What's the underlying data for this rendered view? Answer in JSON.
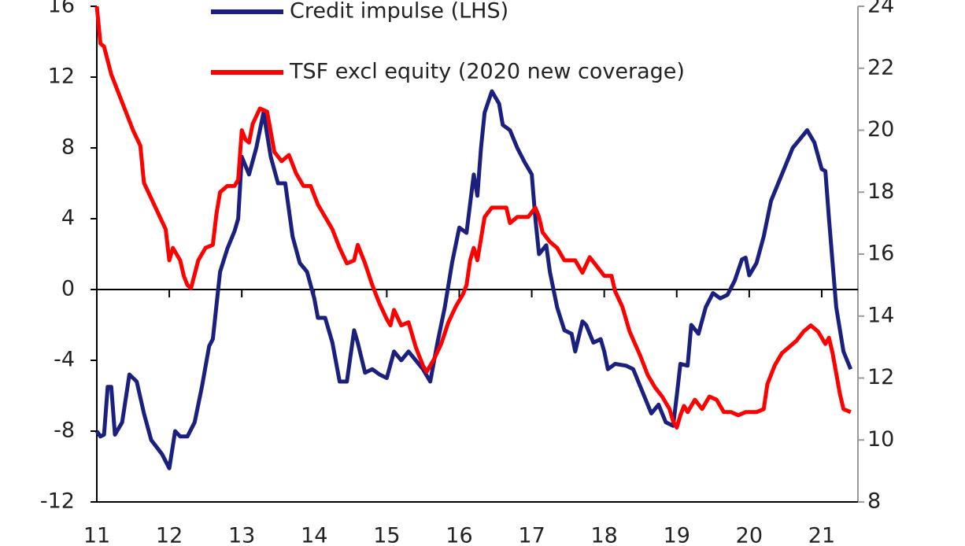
{
  "chart_data": {
    "type": "line",
    "xlim": [
      11,
      21.5
    ],
    "xticks": [
      11,
      12,
      13,
      14,
      15,
      16,
      17,
      18,
      19,
      20,
      21
    ],
    "ylim": [
      -12,
      16
    ],
    "yticks": [
      -12,
      -8,
      -4,
      0,
      4,
      8,
      12,
      16
    ],
    "y2lim": [
      8,
      24
    ],
    "y2ticks": [
      8,
      10,
      12,
      14,
      16,
      18,
      20,
      22,
      24
    ],
    "series": [
      {
        "name": "Credit impulse (LHS)",
        "color": "#1b1f7e",
        "x": [
          11.0,
          11.05,
          11.1,
          11.15,
          11.2,
          11.25,
          11.35,
          11.45,
          11.55,
          11.65,
          11.75,
          11.9,
          12.0,
          12.08,
          12.15,
          12.25,
          12.35,
          12.45,
          12.55,
          12.6,
          12.7,
          12.8,
          12.9,
          12.95,
          13.0,
          13.1,
          13.2,
          13.3,
          13.4,
          13.5,
          13.6,
          13.7,
          13.8,
          13.9,
          14.0,
          14.05,
          14.15,
          14.25,
          14.35,
          14.45,
          14.55,
          14.6,
          14.7,
          14.8,
          14.9,
          15.0,
          15.1,
          15.2,
          15.3,
          15.4,
          15.5,
          15.6,
          15.7,
          15.8,
          15.9,
          16.0,
          16.1,
          16.2,
          16.25,
          16.3,
          16.35,
          16.45,
          16.55,
          16.6,
          16.7,
          16.8,
          16.9,
          17.0,
          17.05,
          17.1,
          17.2,
          17.25,
          17.35,
          17.45,
          17.55,
          17.6,
          17.7,
          17.75,
          17.85,
          17.95,
          18.0,
          18.05,
          18.15,
          18.3,
          18.4,
          18.5,
          18.6,
          18.65,
          18.75,
          18.85,
          18.95,
          19.0,
          19.05,
          19.15,
          19.2,
          19.3,
          19.4,
          19.5,
          19.6,
          19.7,
          19.8,
          19.9,
          19.95,
          20.0,
          20.1,
          20.2,
          20.3,
          20.4,
          20.5,
          20.6,
          20.7,
          20.8,
          20.9,
          21.0,
          21.05,
          21.1,
          21.15,
          21.2,
          21.3,
          21.4
        ],
        "values": [
          -8,
          -8.3,
          -8.2,
          -5.5,
          -5.5,
          -8.2,
          -7.5,
          -4.8,
          -5.2,
          -7,
          -8.5,
          -9.3,
          -10.1,
          -8,
          -8.3,
          -8.3,
          -7.5,
          -5.5,
          -3.2,
          -2.8,
          1,
          2.3,
          3.3,
          4,
          7.5,
          6.5,
          8,
          10,
          7.5,
          6,
          6,
          3,
          1.5,
          1,
          -0.5,
          -1.6,
          -1.6,
          -3,
          -5.2,
          -5.2,
          -2.3,
          -3,
          -4.7,
          -4.5,
          -4.8,
          -5,
          -3.5,
          -4,
          -3.5,
          -4,
          -4.5,
          -5.2,
          -3,
          -1,
          1.5,
          3.5,
          3.2,
          6.5,
          5.3,
          8,
          10,
          11.2,
          10.5,
          9.3,
          9,
          8,
          7.2,
          6.5,
          4,
          2,
          2.5,
          1,
          -1,
          -2.3,
          -2.5,
          -3.5,
          -1.8,
          -2,
          -3,
          -2.8,
          -3.5,
          -4.5,
          -4.2,
          -4.3,
          -4.5,
          -5.5,
          -6.5,
          -7,
          -6.5,
          -7.5,
          -7.7,
          -6,
          -4.2,
          -4.3,
          -2,
          -2.5,
          -1,
          -0.2,
          -0.5,
          -0.3,
          0.5,
          1.7,
          1.8,
          0.8,
          1.5,
          3,
          5,
          6,
          7,
          8,
          8.5,
          9,
          8.3,
          6.8,
          6.7,
          4,
          1.5,
          -1,
          -3.5,
          -4.5
        ]
      },
      {
        "name": "TSF excl equity (2020 new coverage)",
        "color": "#ff0000",
        "axis": "y2",
        "x": [
          11.0,
          11.05,
          11.1,
          11.2,
          11.3,
          11.4,
          11.5,
          11.6,
          11.65,
          11.75,
          11.85,
          11.95,
          12.0,
          12.05,
          12.15,
          12.2,
          12.25,
          12.3,
          12.4,
          12.5,
          12.6,
          12.65,
          12.7,
          12.8,
          12.9,
          12.95,
          13.0,
          13.05,
          13.1,
          13.15,
          13.25,
          13.35,
          13.45,
          13.55,
          13.65,
          13.75,
          13.85,
          13.95,
          14.05,
          14.15,
          14.25,
          14.35,
          14.45,
          14.55,
          14.6,
          14.7,
          14.8,
          14.9,
          15.0,
          15.05,
          15.1,
          15.2,
          15.3,
          15.4,
          15.5,
          15.55,
          15.65,
          15.75,
          15.85,
          15.95,
          16.05,
          16.1,
          16.15,
          16.2,
          16.25,
          16.35,
          16.45,
          16.55,
          16.65,
          16.7,
          16.8,
          16.95,
          17.05,
          17.1,
          17.15,
          17.25,
          17.35,
          17.45,
          17.6,
          17.7,
          17.8,
          17.9,
          18.0,
          18.1,
          18.15,
          18.25,
          18.35,
          18.5,
          18.6,
          18.7,
          18.8,
          18.9,
          18.95,
          19.0,
          19.05,
          19.1,
          19.15,
          19.25,
          19.35,
          19.45,
          19.55,
          19.65,
          19.75,
          19.85,
          19.95,
          20.1,
          20.2,
          20.25,
          20.35,
          20.45,
          20.55,
          20.65,
          20.75,
          20.85,
          20.95,
          21.05,
          21.1,
          21.15,
          21.25,
          21.3,
          21.4
        ],
        "values": [
          24,
          22.8,
          22.7,
          21.8,
          21.2,
          20.6,
          20,
          19.5,
          18.3,
          17.8,
          17.3,
          16.8,
          15.8,
          16.2,
          15.8,
          15.3,
          15,
          14.9,
          15.8,
          16.2,
          16.3,
          17.3,
          18,
          18.2,
          18.2,
          18.4,
          20,
          19.7,
          19.6,
          20.2,
          20.7,
          20.6,
          19.3,
          19,
          19.2,
          18.6,
          18.2,
          18.2,
          17.6,
          17.2,
          16.8,
          16.2,
          15.7,
          15.8,
          16.3,
          15.7,
          15,
          14.4,
          13.9,
          13.7,
          14.2,
          13.7,
          13.8,
          13,
          12.4,
          12.2,
          12.6,
          13.1,
          13.8,
          14.3,
          14.7,
          15,
          15.8,
          16.2,
          15.8,
          17.2,
          17.5,
          17.5,
          17.5,
          17,
          17.2,
          17.2,
          17.5,
          17.2,
          16.7,
          16.4,
          16.2,
          15.8,
          15.8,
          15.4,
          15.9,
          15.6,
          15.3,
          15.3,
          14.8,
          14.3,
          13.5,
          12.7,
          12.1,
          11.7,
          11.4,
          11,
          10.6,
          10.4,
          10.8,
          11.1,
          10.9,
          11.3,
          11,
          11.4,
          11.3,
          10.9,
          10.9,
          10.8,
          10.9,
          10.9,
          11,
          11.8,
          12.4,
          12.8,
          13,
          13.2,
          13.5,
          13.7,
          13.5,
          13.1,
          13.3,
          12.8,
          11.5,
          11,
          10.9
        ]
      }
    ]
  }
}
